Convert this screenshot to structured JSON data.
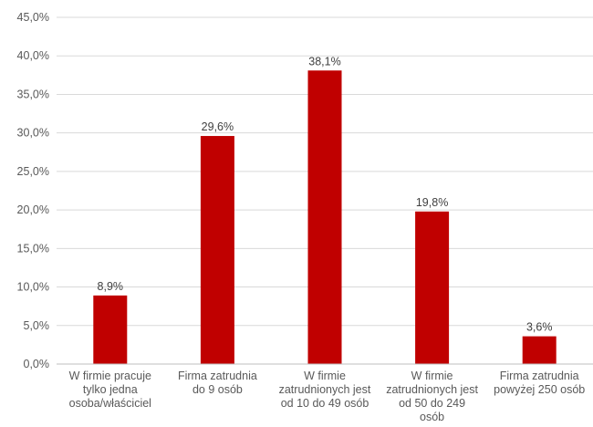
{
  "chart_data": {
    "type": "bar",
    "title": "",
    "xlabel": "",
    "ylabel": "",
    "categories": [
      [
        "W firmie pracuje",
        "tylko jedna",
        "osoba/właściciel"
      ],
      [
        "Firma zatrudnia",
        "do 9 osób"
      ],
      [
        "W firmie",
        "zatrudnionych jest",
        "od 10 do 49 osób"
      ],
      [
        "W firmie",
        "zatrudnionych jest",
        "od 50 do 249",
        "osób"
      ],
      [
        "Firma zatrudnia",
        "powyżej 250 osób"
      ]
    ],
    "values": [
      8.9,
      29.6,
      38.1,
      19.8,
      3.6
    ],
    "data_labels": [
      "8,9%",
      "29,6%",
      "38,1%",
      "19,8%",
      "3,6%"
    ],
    "ylim": [
      0,
      45
    ],
    "yticks": [
      0,
      5,
      10,
      15,
      20,
      25,
      30,
      35,
      40,
      45
    ],
    "ytick_labels": [
      "0,0%",
      "5,0%",
      "10,0%",
      "15,0%",
      "20,0%",
      "25,0%",
      "30,0%",
      "35,0%",
      "40,0%",
      "45,0%"
    ],
    "bar_color": "#c00000",
    "grid": true,
    "legend": "none"
  }
}
